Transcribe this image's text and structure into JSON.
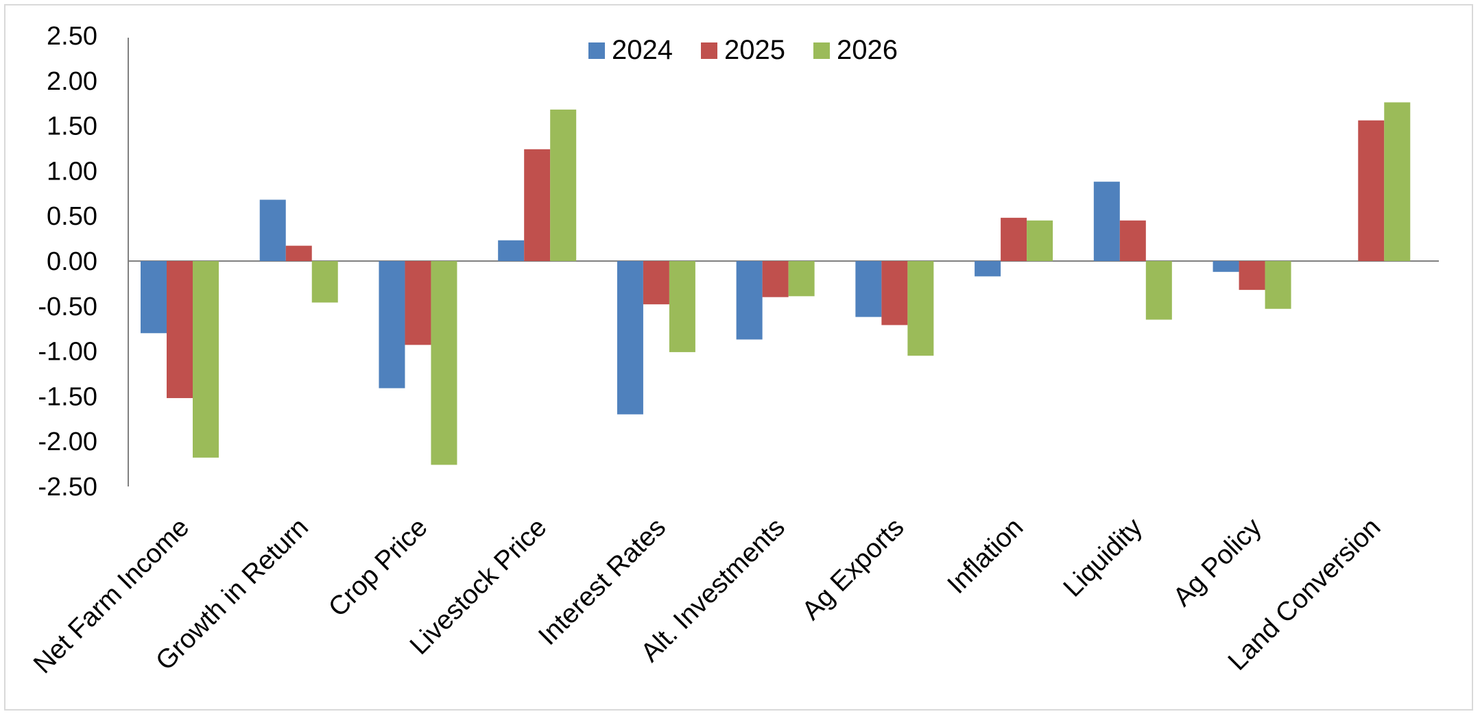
{
  "chart_data": {
    "type": "bar",
    "title": "",
    "xlabel": "",
    "ylabel": "",
    "ylim": [
      -2.5,
      2.5
    ],
    "yticks": [
      "2.50",
      "2.00",
      "1.50",
      "1.00",
      "0.50",
      "0.00",
      "-0.50",
      "-1.00",
      "-1.50",
      "-2.00",
      "-2.50"
    ],
    "ytick_values": [
      2.5,
      2.0,
      1.5,
      1.0,
      0.5,
      0.0,
      -0.5,
      -1.0,
      -1.5,
      -2.0,
      -2.5
    ],
    "grid": false,
    "legend_position": "top-center",
    "categories": [
      "Net Farm Income",
      "Growth in Return",
      "Crop Price",
      "Livestock Price",
      "Interest Rates",
      "Alt. Investments",
      "Ag Exports",
      "Inflation",
      "Liquidity",
      "Ag Policy",
      "Land Conversion"
    ],
    "series": [
      {
        "name": "2024",
        "color": "#4f81bd",
        "values": [
          -0.8,
          0.68,
          -1.41,
          0.23,
          -1.7,
          -0.87,
          -0.62,
          -0.17,
          0.88,
          -0.12,
          0.0
        ]
      },
      {
        "name": "2025",
        "color": "#c0504d",
        "values": [
          -1.52,
          0.17,
          -0.93,
          1.24,
          -0.48,
          -0.4,
          -0.71,
          0.48,
          0.45,
          -0.32,
          1.56
        ]
      },
      {
        "name": "2026",
        "color": "#9bbb59",
        "values": [
          -2.18,
          -0.46,
          -2.26,
          1.68,
          -1.01,
          -0.39,
          -1.05,
          0.45,
          -0.65,
          -0.53,
          1.76
        ]
      }
    ]
  }
}
